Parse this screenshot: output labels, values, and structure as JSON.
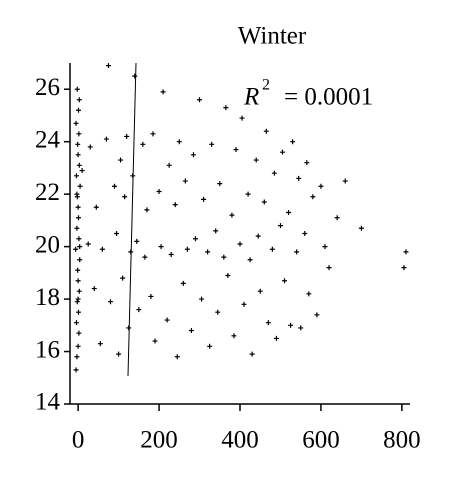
{
  "chart_data": {
    "type": "scatter",
    "title": "Winter",
    "annotation": {
      "symbol": "R",
      "exponent": "2",
      "rest": "= 0.0001"
    },
    "color": "#000000",
    "xlim": [
      -20,
      820
    ],
    "xticks": [
      0,
      200,
      400,
      600,
      800
    ],
    "ylim": [
      14,
      27
    ],
    "yticks": [
      14,
      16,
      18,
      20,
      22,
      24,
      26
    ],
    "series": [
      {
        "name": "Winter",
        "x": [
          -5,
          -3,
          0,
          2,
          -4,
          1,
          -2,
          3,
          0,
          -1,
          4,
          -6,
          2,
          -3,
          1,
          0,
          -2,
          5,
          -4,
          3,
          0,
          -1,
          2,
          -5,
          1,
          3,
          -2,
          0,
          4,
          -3,
          10,
          25,
          30,
          40,
          45,
          55,
          60,
          70,
          75,
          80,
          90,
          95,
          100,
          105,
          110,
          115,
          120,
          125,
          130,
          135,
          140,
          145,
          150,
          160,
          165,
          170,
          180,
          185,
          190,
          200,
          205,
          210,
          220,
          225,
          230,
          240,
          245,
          250,
          260,
          265,
          270,
          280,
          285,
          290,
          300,
          305,
          310,
          320,
          325,
          330,
          340,
          345,
          350,
          360,
          365,
          370,
          380,
          385,
          390,
          400,
          405,
          410,
          420,
          425,
          430,
          440,
          445,
          450,
          460,
          465,
          470,
          480,
          485,
          490,
          500,
          505,
          510,
          520,
          525,
          530,
          540,
          545,
          550,
          560,
          565,
          570,
          580,
          590,
          600,
          610,
          620,
          640,
          660,
          700,
          810,
          805
        ],
        "y": [
          15.3,
          15.8,
          16.2,
          16.7,
          17.1,
          17.5,
          17.9,
          18.3,
          18.7,
          19.1,
          19.5,
          19.9,
          20.3,
          20.7,
          21.1,
          21.5,
          21.9,
          22.3,
          22.7,
          23.1,
          23.5,
          23.9,
          24.3,
          24.7,
          25.2,
          25.6,
          26.0,
          18.0,
          20.0,
          22.0,
          22.9,
          20.1,
          23.8,
          18.4,
          21.5,
          16.3,
          19.9,
          24.1,
          26.9,
          17.9,
          22.3,
          20.5,
          15.9,
          23.3,
          18.8,
          21.9,
          24.2,
          16.9,
          19.8,
          22.7,
          26.5,
          20.2,
          17.6,
          23.9,
          19.6,
          21.4,
          18.1,
          24.3,
          16.4,
          22.1,
          20.0,
          25.9,
          17.2,
          23.1,
          19.7,
          21.6,
          15.8,
          24.0,
          18.6,
          22.5,
          19.9,
          16.8,
          23.5,
          20.3,
          25.6,
          18.0,
          21.8,
          19.8,
          16.2,
          23.9,
          20.6,
          17.5,
          22.4,
          19.6,
          25.3,
          18.9,
          21.2,
          16.6,
          23.7,
          20.1,
          24.9,
          17.8,
          22.0,
          19.5,
          15.9,
          23.3,
          20.4,
          18.3,
          21.7,
          24.4,
          17.1,
          19.9,
          22.8,
          16.5,
          20.8,
          23.6,
          18.7,
          21.3,
          17.0,
          24.0,
          19.8,
          22.6,
          16.9,
          20.5,
          23.2,
          18.2,
          21.9,
          17.4,
          22.3,
          20.0,
          19.2,
          21.1,
          22.5,
          20.7,
          19.8,
          19.2
        ]
      }
    ]
  }
}
